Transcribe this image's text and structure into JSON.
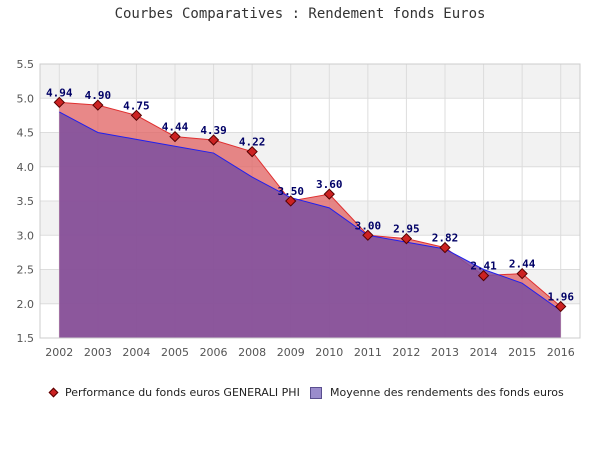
{
  "chart_data": {
    "type": "area",
    "title": "Courbes Comparatives : Rendement fonds Euros",
    "categories": [
      "2002",
      "2003",
      "2004",
      "2005",
      "2006",
      "2008",
      "2009",
      "2010",
      "2011",
      "2012",
      "2013",
      "2014",
      "2015",
      "2016"
    ],
    "ylim": [
      1.5,
      5.5
    ],
    "yticks": [
      "1.5",
      "2.0",
      "2.5",
      "3.0",
      "3.5",
      "4.0",
      "4.5",
      "5.0",
      "5.5"
    ],
    "grid": true,
    "legend_position": "bottom",
    "series": [
      {
        "name": "Performance du fonds euros GENERALI PHI",
        "values": [
          4.94,
          4.9,
          4.75,
          4.44,
          4.39,
          4.22,
          3.5,
          3.6,
          3.0,
          2.95,
          2.82,
          2.41,
          2.44,
          1.96
        ],
        "labels": [
          "4.94",
          "4.90",
          "4.75",
          "4.44",
          "4.39",
          "4.22",
          "3.50",
          "3.60",
          "3.00",
          "2.95",
          "2.82",
          "2.41",
          "2.44",
          "1.96"
        ],
        "color": "#e06060",
        "marker_color": "#cc2222"
      },
      {
        "name": "Moyenne des rendements des fonds euros",
        "values": [
          4.8,
          4.5,
          4.4,
          4.3,
          4.2,
          3.85,
          3.55,
          3.4,
          3.0,
          2.9,
          2.8,
          2.5,
          2.3,
          1.9
        ],
        "color": "#7b4fa0",
        "line_color": "#2020ee"
      }
    ]
  }
}
